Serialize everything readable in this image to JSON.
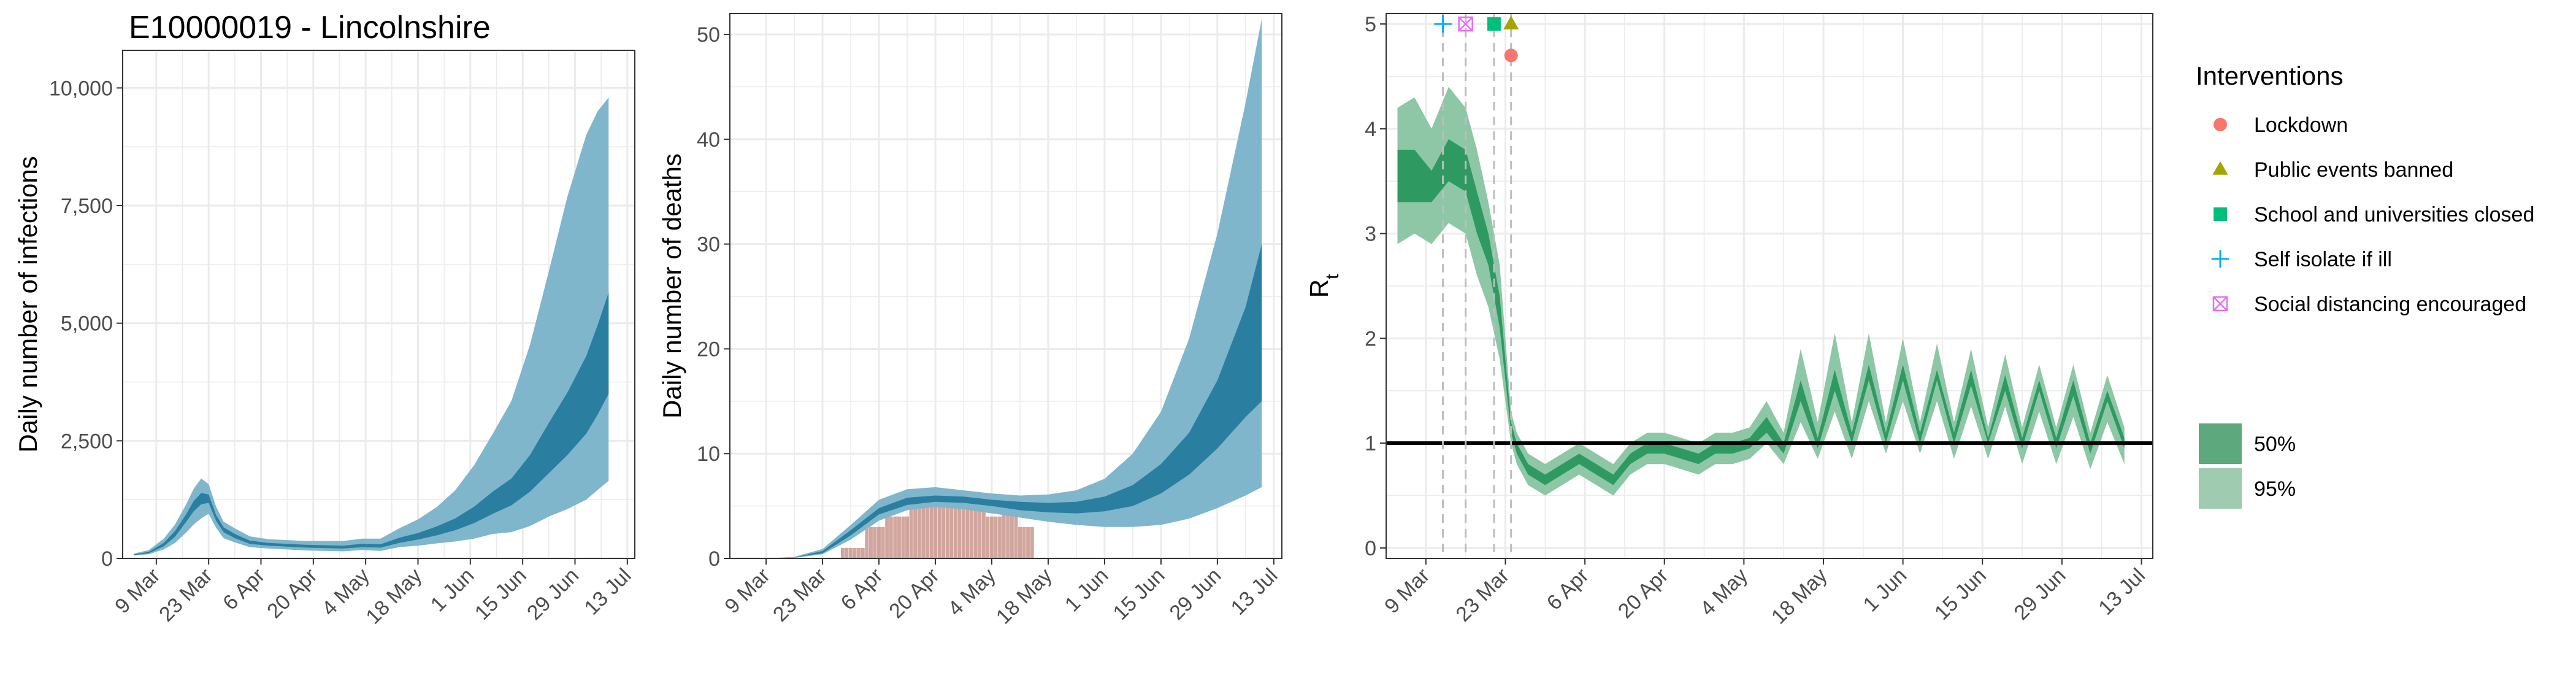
{
  "title": "E10000019 - Lincolnshire",
  "colors": {
    "inner_band": "#2a7fa0",
    "outer_band": "#7fb6cb",
    "deaths_bar": "#c9968d",
    "rt_inner": "#2e9a62",
    "rt_outer": "#8dc7a6",
    "grid": "#ebebeb",
    "lockdown": "#f8766d",
    "public_events": "#a3a500",
    "schools": "#00bf7d",
    "self_isolate": "#00b0f6",
    "social_distancing": "#e76bf3"
  },
  "chart_data": [
    {
      "type": "area",
      "title": "E10000019 - Lincolnshire",
      "xlabel": "",
      "ylabel": "Daily number of infections",
      "x_start": "2020-02-29",
      "x_end": "2020-07-15",
      "ylim": [
        0,
        10800
      ],
      "xticks": [
        "9 Mar",
        "23 Mar",
        "6 Apr",
        "20 Apr",
        "4 May",
        "18 May",
        "1 Jun",
        "15 Jun",
        "29 Jun",
        "13 Jul"
      ],
      "xtick_dates": [
        "2020-03-09",
        "2020-03-23",
        "2020-04-06",
        "2020-04-20",
        "2020-05-04",
        "2020-05-18",
        "2020-06-01",
        "2020-06-15",
        "2020-06-29",
        "2020-07-13"
      ],
      "yticks": [
        0,
        2500,
        5000,
        7500,
        10000
      ],
      "ytick_labels": [
        "0",
        "2,500",
        "5,000",
        "7,500",
        "10,000"
      ],
      "grid": true,
      "series": [
        {
          "dates": [
            "2020-03-03",
            "2020-03-07",
            "2020-03-11",
            "2020-03-14",
            "2020-03-17",
            "2020-03-19",
            "2020-03-21",
            "2020-03-23",
            "2020-03-25",
            "2020-03-27",
            "2020-03-30",
            "2020-04-03",
            "2020-04-08",
            "2020-04-13",
            "2020-04-18",
            "2020-04-23",
            "2020-04-28",
            "2020-05-03",
            "2020-05-08",
            "2020-05-13",
            "2020-05-18",
            "2020-05-23",
            "2020-05-28",
            "2020-06-02",
            "2020-06-07",
            "2020-06-12",
            "2020-06-17",
            "2020-06-22",
            "2020-06-27",
            "2020-07-02",
            "2020-07-05",
            "2020-07-08"
          ],
          "p2_5": [
            60,
            90,
            190,
            330,
            550,
            720,
            850,
            950,
            650,
            430,
            340,
            240,
            210,
            190,
            170,
            160,
            150,
            180,
            160,
            240,
            270,
            320,
            360,
            420,
            520,
            560,
            690,
            890,
            1050,
            1250,
            1450,
            1650
          ],
          "p25": [
            70,
            110,
            260,
            460,
            780,
            1000,
            1150,
            1180,
            800,
            560,
            430,
            310,
            270,
            250,
            230,
            220,
            210,
            240,
            230,
            330,
            400,
            490,
            600,
            750,
            950,
            1130,
            1420,
            1810,
            2200,
            2650,
            3050,
            3500
          ],
          "p75": [
            85,
            140,
            330,
            580,
            940,
            1220,
            1390,
            1360,
            920,
            660,
            520,
            380,
            330,
            310,
            290,
            280,
            270,
            310,
            300,
            440,
            540,
            680,
            850,
            1100,
            1420,
            1700,
            2200,
            2880,
            3530,
            4300,
            4950,
            5650
          ],
          "p97_5": [
            100,
            180,
            420,
            720,
            1150,
            1480,
            1700,
            1580,
            1100,
            780,
            640,
            470,
            410,
            390,
            370,
            370,
            370,
            420,
            420,
            640,
            830,
            1090,
            1450,
            1980,
            2650,
            3350,
            4550,
            6100,
            7700,
            9000,
            9500,
            9800
          ]
        }
      ]
    },
    {
      "type": "area",
      "title": "",
      "xlabel": "",
      "ylabel": "Daily number of deaths",
      "x_start": "2020-02-29",
      "x_end": "2020-07-15",
      "ylim": [
        0,
        52
      ],
      "xticks": [
        "9 Mar",
        "23 Mar",
        "6 Apr",
        "20 Apr",
        "4 May",
        "18 May",
        "1 Jun",
        "15 Jun",
        "29 Jun",
        "13 Jul"
      ],
      "xtick_dates": [
        "2020-03-09",
        "2020-03-23",
        "2020-04-06",
        "2020-04-20",
        "2020-05-04",
        "2020-05-18",
        "2020-06-01",
        "2020-06-15",
        "2020-06-29",
        "2020-07-13"
      ],
      "yticks": [
        0,
        10,
        20,
        30,
        40,
        50
      ],
      "ytick_labels": [
        "0",
        "10",
        "20",
        "30",
        "40",
        "50"
      ],
      "grid": true,
      "series": [
        {
          "dates": [
            "2020-03-09",
            "2020-03-16",
            "2020-03-23",
            "2020-03-30",
            "2020-04-06",
            "2020-04-13",
            "2020-04-20",
            "2020-04-27",
            "2020-05-04",
            "2020-05-11",
            "2020-05-18",
            "2020-05-25",
            "2020-06-01",
            "2020-06-08",
            "2020-06-15",
            "2020-06-22",
            "2020-06-29",
            "2020-07-06",
            "2020-07-10"
          ],
          "p2_5": [
            0,
            0.05,
            0.4,
            1.8,
            3.6,
            4.6,
            4.9,
            4.7,
            4.3,
            3.9,
            3.5,
            3.2,
            3.0,
            3.0,
            3.2,
            3.8,
            4.8,
            6.0,
            6.8
          ],
          "p25": [
            0,
            0.1,
            0.5,
            2.2,
            4.2,
            5.1,
            5.4,
            5.3,
            5.0,
            4.6,
            4.4,
            4.3,
            4.5,
            5.0,
            6.2,
            8.0,
            10.5,
            13.5,
            15.0
          ],
          "p75": [
            0,
            0.1,
            0.7,
            2.7,
            4.8,
            5.8,
            6.0,
            5.9,
            5.6,
            5.4,
            5.3,
            5.4,
            5.9,
            7.0,
            9.0,
            12.0,
            17.0,
            24.0,
            30.0
          ],
          "p97_5": [
            0,
            0.15,
            0.9,
            3.2,
            5.6,
            6.6,
            6.8,
            6.5,
            6.2,
            6.0,
            6.1,
            6.5,
            7.6,
            10.0,
            14.0,
            21.0,
            31.0,
            43.5,
            51.5
          ]
        }
      ],
      "bars": {
        "dates": [
          "2020-03-28",
          "2020-03-29",
          "2020-03-30",
          "2020-03-31",
          "2020-04-01",
          "2020-04-02",
          "2020-04-03",
          "2020-04-04",
          "2020-04-05",
          "2020-04-06",
          "2020-04-07",
          "2020-04-08",
          "2020-04-09",
          "2020-04-10",
          "2020-04-11",
          "2020-04-12",
          "2020-04-13",
          "2020-04-14",
          "2020-04-15",
          "2020-04-16",
          "2020-04-17",
          "2020-04-18",
          "2020-04-19",
          "2020-04-20",
          "2020-04-21",
          "2020-04-22",
          "2020-04-23",
          "2020-04-24",
          "2020-04-25",
          "2020-04-26",
          "2020-04-27",
          "2020-04-28",
          "2020-04-29",
          "2020-04-30",
          "2020-05-01",
          "2020-05-02",
          "2020-05-03",
          "2020-05-04",
          "2020-05-05",
          "2020-05-06",
          "2020-05-07",
          "2020-05-08",
          "2020-05-09",
          "2020-05-10",
          "2020-05-11",
          "2020-05-12",
          "2020-05-13",
          "2020-05-14"
        ],
        "values": [
          1,
          1,
          1,
          1,
          1,
          1,
          3,
          3,
          3,
          3,
          3,
          4,
          4,
          4,
          4,
          4,
          4,
          5,
          5,
          5,
          5,
          5,
          5,
          5,
          5,
          5,
          5,
          5,
          5,
          5,
          5,
          5,
          6,
          6,
          6,
          6,
          4,
          4,
          4,
          4,
          5,
          5,
          5,
          5,
          3,
          3,
          3,
          3
        ]
      }
    },
    {
      "type": "area",
      "title": "",
      "xlabel": "",
      "ylabel": "R",
      "ylabel_subscript": "t",
      "x_start": "2020-03-02",
      "x_end": "2020-07-15",
      "ylim": [
        -0.1,
        5.1
      ],
      "xticks": [
        "9 Mar",
        "23 Mar",
        "6 Apr",
        "20 Apr",
        "4 May",
        "18 May",
        "1 Jun",
        "15 Jun",
        "29 Jun",
        "13 Jul"
      ],
      "xtick_dates": [
        "2020-03-09",
        "2020-03-23",
        "2020-04-06",
        "2020-04-20",
        "2020-05-04",
        "2020-05-18",
        "2020-06-01",
        "2020-06-15",
        "2020-06-29",
        "2020-07-13"
      ],
      "yticks": [
        0,
        1,
        2,
        3,
        4,
        5
      ],
      "ytick_labels": [
        "0",
        "1",
        "2",
        "3",
        "4",
        "5"
      ],
      "grid": true,
      "reference_line": 1,
      "series": [
        {
          "dates": [
            "2020-03-04",
            "2020-03-07",
            "2020-03-10",
            "2020-03-13",
            "2020-03-16",
            "2020-03-18",
            "2020-03-20",
            "2020-03-22",
            "2020-03-24",
            "2020-03-25",
            "2020-03-27",
            "2020-03-30",
            "2020-04-02",
            "2020-04-05",
            "2020-04-08",
            "2020-04-11",
            "2020-04-14",
            "2020-04-17",
            "2020-04-20",
            "2020-04-23",
            "2020-04-26",
            "2020-04-29",
            "2020-05-02",
            "2020-05-05",
            "2020-05-08",
            "2020-05-11",
            "2020-05-14",
            "2020-05-17",
            "2020-05-20",
            "2020-05-23",
            "2020-05-26",
            "2020-05-29",
            "2020-06-01",
            "2020-06-04",
            "2020-06-07",
            "2020-06-10",
            "2020-06-13",
            "2020-06-16",
            "2020-06-19",
            "2020-06-22",
            "2020-06-25",
            "2020-06-28",
            "2020-07-01",
            "2020-07-04",
            "2020-07-07",
            "2020-07-10"
          ],
          "p2_5": [
            2.9,
            3.0,
            2.9,
            3.1,
            3.0,
            2.6,
            2.3,
            1.8,
            1.0,
            0.8,
            0.6,
            0.5,
            0.6,
            0.7,
            0.6,
            0.5,
            0.7,
            0.8,
            0.8,
            0.75,
            0.7,
            0.8,
            0.8,
            0.85,
            1.0,
            0.8,
            1.2,
            0.85,
            1.3,
            0.85,
            1.4,
            0.9,
            1.4,
            0.9,
            1.4,
            0.85,
            1.35,
            0.85,
            1.35,
            0.8,
            1.3,
            0.8,
            1.25,
            0.75,
            1.2,
            0.8
          ],
          "p25": [
            3.3,
            3.3,
            3.3,
            3.5,
            3.4,
            3.0,
            2.7,
            2.1,
            1.1,
            0.9,
            0.7,
            0.6,
            0.7,
            0.8,
            0.7,
            0.6,
            0.8,
            0.9,
            0.9,
            0.85,
            0.8,
            0.9,
            0.9,
            0.95,
            1.1,
            0.9,
            1.4,
            0.95,
            1.5,
            1.0,
            1.6,
            1.0,
            1.6,
            1.0,
            1.6,
            1.0,
            1.55,
            1.0,
            1.5,
            0.95,
            1.5,
            0.95,
            1.45,
            0.9,
            1.4,
            0.95
          ],
          "p75": [
            3.8,
            3.8,
            3.6,
            3.9,
            3.8,
            3.4,
            3.0,
            2.4,
            1.2,
            1.0,
            0.8,
            0.7,
            0.8,
            0.9,
            0.8,
            0.7,
            0.9,
            1.0,
            1.0,
            0.95,
            0.9,
            1.0,
            1.0,
            1.05,
            1.25,
            1.0,
            1.6,
            1.05,
            1.7,
            1.1,
            1.75,
            1.1,
            1.75,
            1.1,
            1.7,
            1.1,
            1.7,
            1.05,
            1.65,
            1.05,
            1.6,
            1.05,
            1.6,
            1.0,
            1.5,
            1.05
          ],
          "p97_5": [
            4.2,
            4.3,
            4.0,
            4.4,
            4.2,
            3.8,
            3.3,
            2.7,
            1.3,
            1.1,
            0.9,
            0.8,
            0.9,
            1.0,
            0.9,
            0.8,
            1.0,
            1.1,
            1.1,
            1.05,
            1.0,
            1.1,
            1.1,
            1.15,
            1.4,
            1.1,
            1.9,
            1.2,
            2.05,
            1.2,
            2.05,
            1.2,
            2.0,
            1.2,
            1.95,
            1.2,
            1.9,
            1.15,
            1.85,
            1.15,
            1.75,
            1.15,
            1.75,
            1.1,
            1.65,
            1.15
          ]
        }
      ],
      "interventions": [
        {
          "name": "Self isolate if ill",
          "date": "2020-03-12",
          "marker": "plus",
          "value": 5.0
        },
        {
          "name": "Social distancing encouraged",
          "date": "2020-03-16",
          "marker": "boxx",
          "value": 5.0
        },
        {
          "name": "School and universities closed",
          "date": "2020-03-21",
          "marker": "square",
          "value": 5.0
        },
        {
          "name": "Public events banned",
          "date": "2020-03-24",
          "marker": "triangle",
          "value": 5.0
        },
        {
          "name": "Lockdown",
          "date": "2020-03-24",
          "marker": "circle",
          "value": 4.7
        }
      ]
    }
  ],
  "legend": {
    "interventions_title": "Interventions",
    "interventions": [
      {
        "label": "Lockdown",
        "marker": "circle",
        "color": "#f8766d"
      },
      {
        "label": "Public events banned",
        "marker": "triangle",
        "color": "#a3a500"
      },
      {
        "label": "School and universities closed",
        "marker": "square",
        "color": "#00bf7d"
      },
      {
        "label": "Self isolate if ill",
        "marker": "plus",
        "color": "#00b0f6"
      },
      {
        "label": "Social distancing encouraged",
        "marker": "boxx",
        "color": "#e76bf3"
      }
    ],
    "bands": [
      {
        "label": "50%",
        "color": "#5ea87e"
      },
      {
        "label": "95%",
        "color": "#9fcbb1"
      }
    ]
  }
}
